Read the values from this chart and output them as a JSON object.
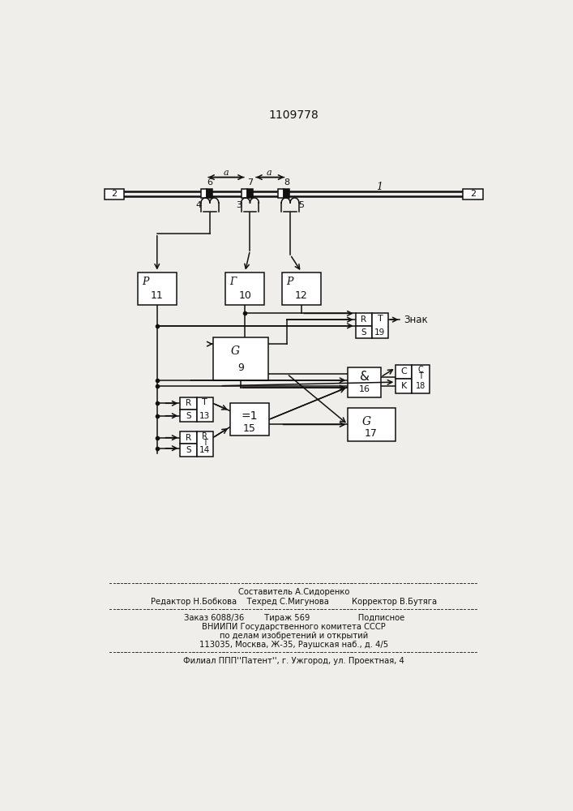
{
  "title": "1109778",
  "bg": "#f0eeea",
  "lc": "#111111",
  "footer": {
    "line1": "Составитель А.Сидоренко",
    "line2": "Редактор Н.Бобкова    Техред С.Мигунова         Корректор В.Бутяга",
    "line3": "Заказ 6088/36        Тираж 569                   Подписное",
    "line4": "ВНИИПИ Государственного комитета СССР",
    "line5": "по делам изобретений и открытий",
    "line6": "113035, Москва, Ж-35, Раушская наб., д. 4/5",
    "line7": "Филиал ППП’’Патент’’, г. Ужгород, ул. Проектная, 4"
  }
}
